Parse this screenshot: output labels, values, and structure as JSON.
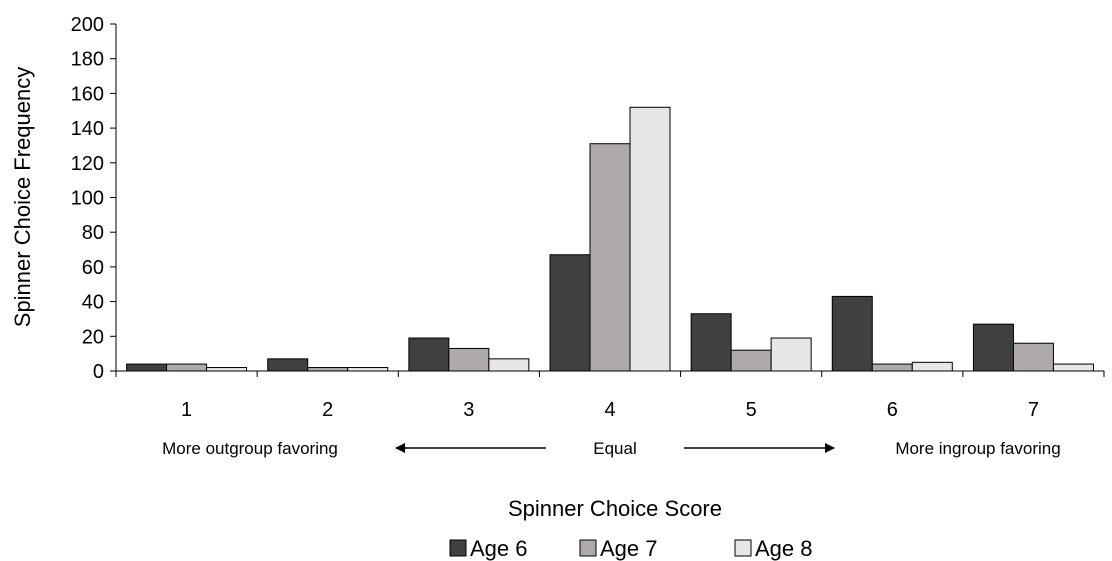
{
  "chart_data": {
    "type": "bar",
    "categories": [
      "1",
      "2",
      "3",
      "4",
      "5",
      "6",
      "7"
    ],
    "series": [
      {
        "name": "Age 6",
        "values": [
          4,
          7,
          19,
          67,
          33,
          43,
          27
        ],
        "color": "#404040"
      },
      {
        "name": "Age 7",
        "values": [
          4,
          2,
          13,
          131,
          12,
          4,
          16
        ],
        "color": "#aeaaaa"
      },
      {
        "name": "Age 8",
        "values": [
          2,
          2,
          7,
          152,
          19,
          5,
          4
        ],
        "color": "#e7e6e6"
      }
    ],
    "ylabel": "Spinner Choice Frequency",
    "xlabel": "Spinner Choice Score",
    "ylim": [
      0,
      200
    ],
    "yticks": [
      0,
      20,
      40,
      60,
      80,
      100,
      120,
      140,
      160,
      180,
      200
    ],
    "grid": false,
    "legend_position": "bottom",
    "annotations": {
      "left": "More outgroup favoring",
      "center": "Equal",
      "right": "More ingroup favoring"
    }
  }
}
